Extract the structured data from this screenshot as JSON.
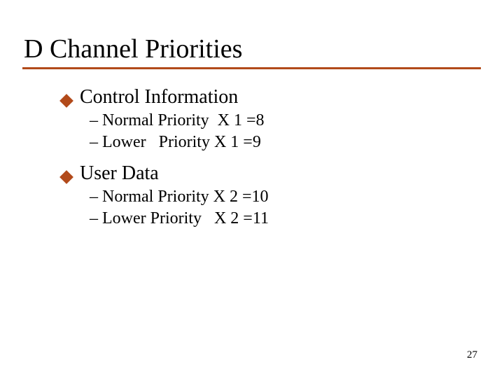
{
  "slide": {
    "title": "D Channel Priorities",
    "bullets": [
      {
        "label": "Control Information",
        "subs": [
          "– Normal Priority  X 1 =8",
          "– Lower   Priority X 1 =9"
        ]
      },
      {
        "label": "User Data",
        "subs": [
          "– Normal Priority X 2 =10",
          "– Lower Priority   X 2 =11"
        ]
      }
    ],
    "page_number": "27",
    "colors": {
      "accent": "#b24a1a",
      "text": "#000000",
      "background": "#ffffff"
    }
  }
}
